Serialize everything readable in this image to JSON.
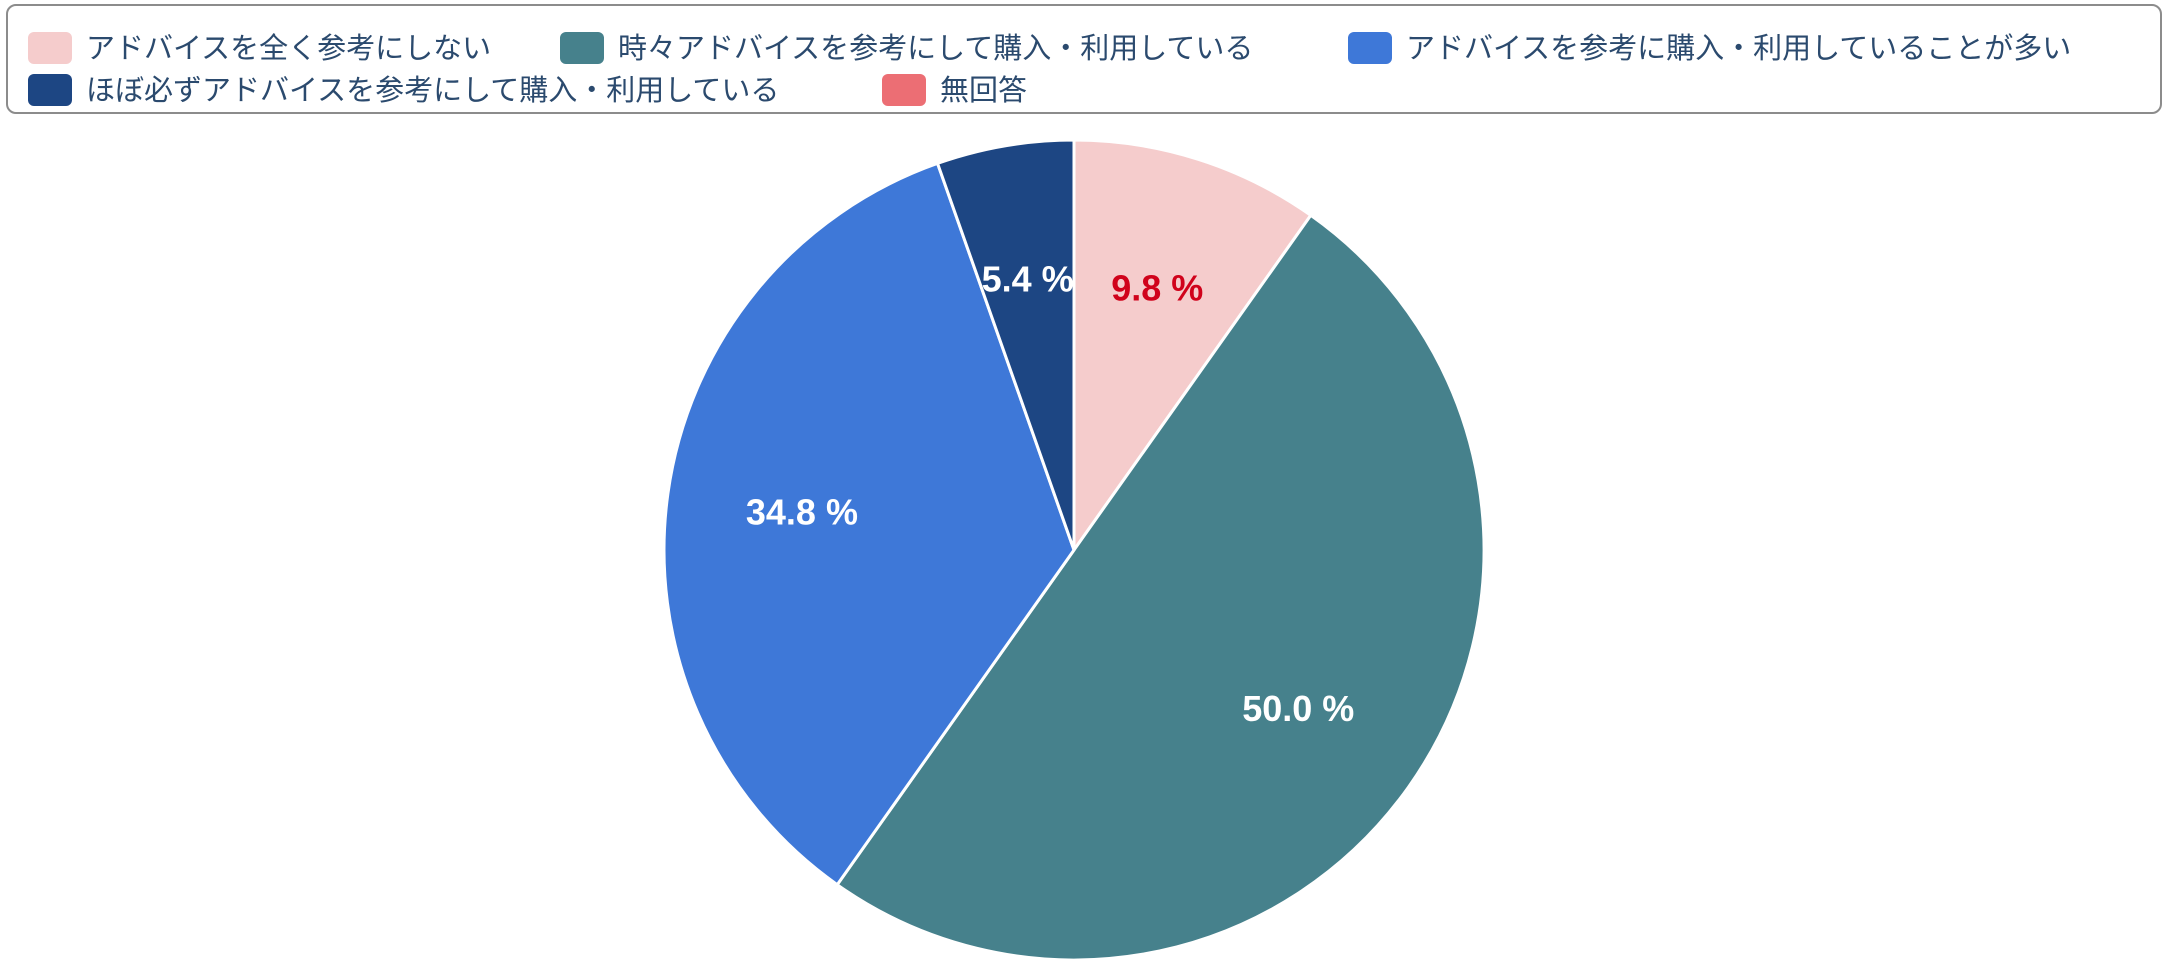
{
  "chart_data": {
    "type": "pie",
    "title": "",
    "legend_position": "top",
    "start": "top-clockwise",
    "series": [
      {
        "name": "アドバイスを全く参考にしない",
        "value": 9.8,
        "label": "9.8 %",
        "color": "#f5cccc",
        "label_color": "#d0021b"
      },
      {
        "name": "時々アドバイスを参考にして購入・利用している",
        "value": 50.0,
        "label": "50.0 %",
        "color": "#46818c",
        "label_color": "#ffffff"
      },
      {
        "name": "アドバイスを参考に購入・利用していることが多い",
        "value": 34.8,
        "label": "34.8 %",
        "color": "#3e78d8",
        "label_color": "#ffffff"
      },
      {
        "name": "ほぼ必ずアドバイスを参考にして購入・利用している",
        "value": 5.4,
        "label": "5.4 %",
        "color": "#1d4683",
        "label_color": "#ffffff"
      },
      {
        "name": "無回答",
        "value": 0,
        "label": "",
        "color": "#ec6e74",
        "label_color": "#ffffff"
      }
    ]
  }
}
